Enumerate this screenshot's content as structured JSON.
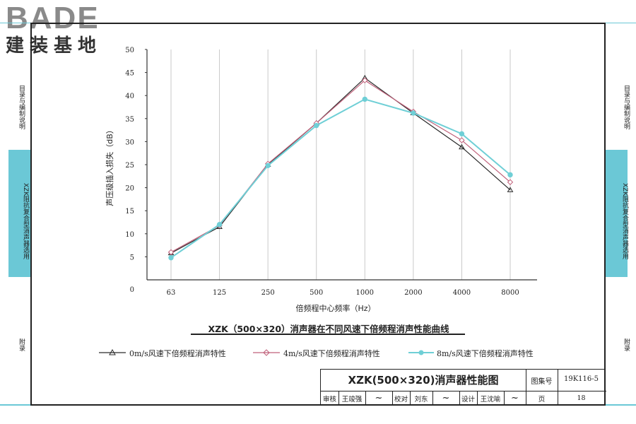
{
  "logo": {
    "text": "BADE",
    "sub": "建装基地"
  },
  "left_tabs": [
    {
      "label": "目录与编制说明"
    },
    {
      "label": "XZK阻抗复合型消声器选用"
    },
    {
      "label": "附录"
    }
  ],
  "right_tabs": [
    {
      "label": "目录与编制说明"
    },
    {
      "label": "XZK阻抗复合型消声器选用"
    },
    {
      "label": "附录"
    }
  ],
  "chart_caption": "XZK（500×320）消声器在不同风速下倍频程消声性能曲线",
  "chart_data": {
    "type": "line",
    "categories": [
      "63",
      "125",
      "250",
      "500",
      "1000",
      "2000",
      "4000",
      "8000"
    ],
    "ylabel": "声压级插入损失（dB）",
    "xlabel": "倍频程中心频率（Hz）",
    "ylim": [
      0,
      50
    ],
    "yticks": [
      "0",
      "5",
      "10",
      "15",
      "20",
      "25",
      "30",
      "35",
      "40",
      "45",
      "50"
    ],
    "grid": "vertical",
    "legend_position": "bottom",
    "series": [
      {
        "name": "0m/s风速下倍频程消声特性",
        "values": [
          5.8,
          11.5,
          25.0,
          34.0,
          43.8,
          36.2,
          28.8,
          19.5
        ],
        "color": "#2a2a2a",
        "marker": "triangle"
      },
      {
        "name": "4m/s风速下倍频程消声特性",
        "values": [
          6.0,
          11.8,
          25.2,
          34.0,
          43.3,
          36.5,
          30.3,
          21.2
        ],
        "color": "#c0607a",
        "marker": "diamond"
      },
      {
        "name": "8m/s风速下倍频程消声特性",
        "values": [
          4.8,
          12.0,
          24.8,
          33.5,
          39.2,
          36.2,
          31.7,
          22.8
        ],
        "color": "#6fcfd6",
        "marker": "star"
      }
    ]
  },
  "title_block": {
    "title": "XZK(500×320)消声器性能图",
    "atlas_label": "图集号",
    "atlas_no": "19K116-5",
    "review_label": "审核",
    "reviewer": "王竣强",
    "check_label": "校对",
    "checker": "刘东",
    "design_label": "设计",
    "designer": "王沈喻",
    "page_label": "页",
    "page_no": "18"
  }
}
